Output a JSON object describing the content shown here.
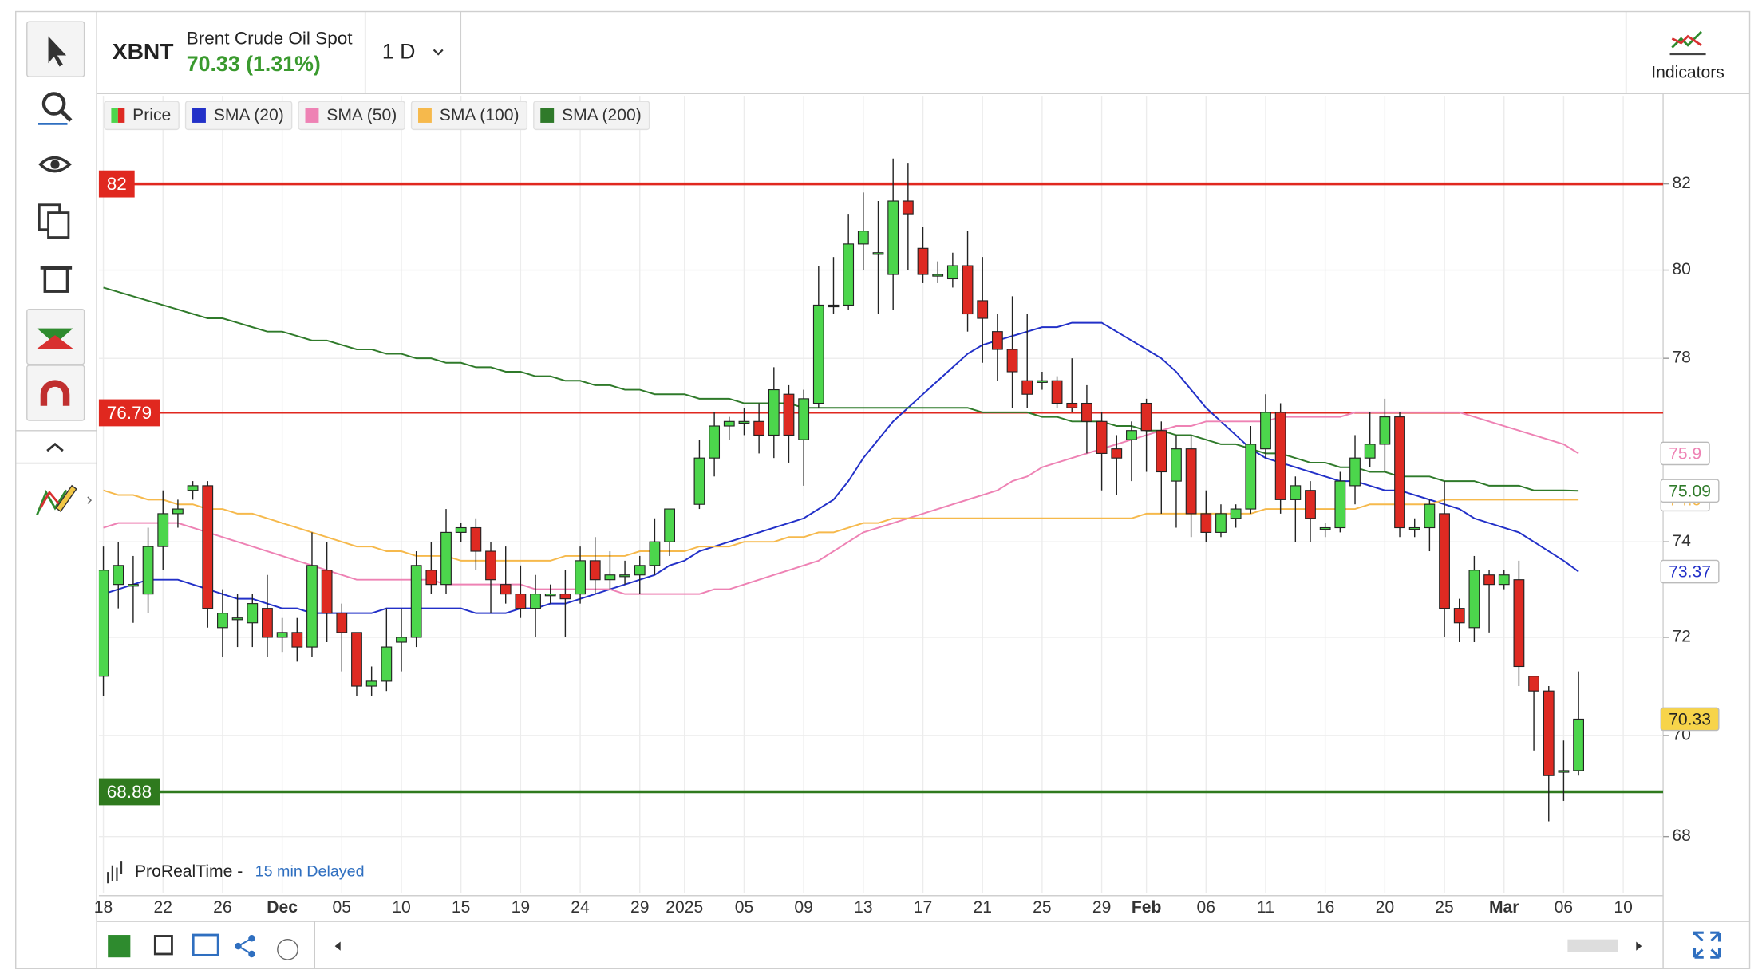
{
  "header": {
    "symbol": "XBNT",
    "name": "Brent Crude Oil Spot",
    "quote": "70.33 (1.31%)",
    "timeframe": "1 D",
    "indicators": "Indicators"
  },
  "footer": {
    "source": "ProRealTime -",
    "delay": "15 min Delayed"
  },
  "chart_data": {
    "type": "candlestick",
    "price_name": "Price",
    "up_color": "#4cd64c",
    "down_color": "#de2a22",
    "log_scale": true,
    "grid": true,
    "legend": "top-left",
    "ylim": [
      66.9,
      84.1
    ],
    "yticks": [
      68,
      70,
      72,
      74,
      78,
      80,
      82
    ],
    "categories": [
      "18",
      null,
      null,
      null,
      "22",
      null,
      null,
      null,
      "26",
      null,
      null,
      null,
      "Dec",
      null,
      null,
      null,
      "05",
      null,
      null,
      null,
      "10",
      null,
      null,
      null,
      "15",
      null,
      null,
      null,
      "19",
      null,
      null,
      null,
      "24",
      null,
      null,
      null,
      "29",
      null,
      null,
      "2025",
      null,
      null,
      null,
      "05",
      null,
      null,
      null,
      "09",
      null,
      null,
      null,
      "13",
      null,
      null,
      null,
      "17",
      null,
      null,
      null,
      "21",
      null,
      null,
      null,
      "25",
      null,
      null,
      null,
      "29",
      null,
      null,
      "Feb",
      null,
      null,
      null,
      "06",
      null,
      null,
      null,
      "11",
      null,
      null,
      null,
      "16",
      null,
      null,
      null,
      "20",
      null,
      null,
      null,
      "25",
      null,
      null,
      null,
      "Mar",
      null,
      null,
      null,
      "06",
      null,
      null,
      null,
      "10"
    ],
    "open": [
      71.2,
      73.1,
      73.1,
      72.9,
      73.9,
      74.6,
      75.1,
      75.2,
      72.2,
      72.4,
      72.3,
      72.6,
      72.0,
      72.1,
      71.8,
      73.4,
      72.5,
      72.1,
      71.0,
      71.1,
      71.9,
      72.0,
      73.4,
      73.1,
      74.2,
      74.3,
      73.8,
      73.1,
      72.9,
      72.6,
      72.9,
      72.9,
      72.9,
      73.6,
      73.2,
      73.3,
      73.3,
      73.5,
      74.0,
      null,
      74.8,
      75.8,
      76.5,
      76.6,
      76.6,
      76.3,
      77.2,
      76.2,
      77.0,
      79.2,
      79.2,
      80.6,
      80.4,
      79.9,
      81.6,
      80.5,
      79.9,
      79.8,
      80.1,
      79.3,
      78.6,
      78.2,
      77.5,
      77.5,
      77.5,
      77.0,
      77.0,
      76.6,
      76.0,
      76.2,
      77.0,
      76.4,
      75.3,
      76.0,
      74.6,
      74.2,
      74.5,
      74.7,
      76.0,
      76.8,
      74.9,
      75.1,
      74.3,
      74.3,
      75.2,
      75.8,
      76.1,
      76.7,
      74.3,
      74.3,
      74.6,
      72.6,
      72.2,
      73.3,
      73.1,
      73.2,
      71.2,
      70.9,
      69.3,
      69.3,
      null,
      null,
      null
    ],
    "high": [
      73.9,
      74.0,
      73.7,
      74.3,
      75.1,
      74.9,
      75.3,
      75.3,
      73.0,
      72.9,
      72.9,
      73.3,
      72.4,
      72.4,
      74.2,
      74.0,
      72.7,
      72.1,
      71.4,
      72.6,
      72.6,
      73.8,
      74.0,
      74.7,
      74.4,
      74.5,
      74.0,
      73.9,
      73.5,
      73.3,
      73.1,
      73.4,
      73.9,
      74.1,
      73.8,
      73.6,
      73.7,
      74.5,
      74.7,
      null,
      76.2,
      76.8,
      76.7,
      76.9,
      77.0,
      77.8,
      77.4,
      77.3,
      80.1,
      80.3,
      81.3,
      81.8,
      81.6,
      82.6,
      82.5,
      81.0,
      80.2,
      80.4,
      80.9,
      80.3,
      79.0,
      79.4,
      79.0,
      77.7,
      77.6,
      78.0,
      77.4,
      76.8,
      76.3,
      76.6,
      77.1,
      76.6,
      76.3,
      76.3,
      75.1,
      74.8,
      74.8,
      76.5,
      77.2,
      77.0,
      75.4,
      75.3,
      74.4,
      75.5,
      76.3,
      76.8,
      77.1,
      76.8,
      74.5,
      74.9,
      75.3,
      72.8,
      73.7,
      73.4,
      73.4,
      73.6,
      71.2,
      71.0,
      69.9,
      71.3,
      null,
      null,
      null
    ],
    "low": [
      70.8,
      72.6,
      72.3,
      72.5,
      73.4,
      74.3,
      74.9,
      72.2,
      71.6,
      71.8,
      71.8,
      71.6,
      71.7,
      71.5,
      71.6,
      71.9,
      71.3,
      70.8,
      70.8,
      70.9,
      71.3,
      71.8,
      72.9,
      72.9,
      74.0,
      73.4,
      72.5,
      72.7,
      72.4,
      72.0,
      72.7,
      72.0,
      72.7,
      72.9,
      73.0,
      73.1,
      72.9,
      73.3,
      73.7,
      null,
      74.7,
      75.4,
      76.2,
      76.3,
      75.9,
      75.8,
      75.7,
      75.2,
      76.9,
      79.0,
      79.1,
      80.0,
      79.0,
      79.1,
      80.0,
      79.7,
      79.7,
      79.6,
      78.6,
      77.9,
      77.5,
      76.9,
      76.9,
      77.3,
      76.9,
      76.8,
      75.9,
      75.1,
      75.0,
      75.3,
      75.5,
      74.6,
      74.3,
      74.1,
      74.0,
      74.1,
      74.3,
      74.6,
      75.8,
      74.6,
      74.0,
      74.0,
      74.1,
      74.2,
      74.8,
      75.6,
      75.5,
      74.1,
      74.1,
      73.8,
      72.0,
      71.9,
      71.9,
      72.1,
      73.0,
      71.0,
      69.7,
      68.3,
      68.7,
      69.2,
      null,
      null,
      null
    ],
    "close": [
      73.4,
      73.5,
      73.1,
      73.9,
      74.6,
      74.7,
      75.2,
      72.6,
      72.5,
      72.4,
      72.7,
      72.0,
      72.1,
      71.8,
      73.5,
      72.5,
      72.1,
      71.0,
      71.1,
      71.8,
      72.0,
      73.5,
      73.1,
      74.2,
      74.3,
      73.8,
      73.2,
      72.9,
      72.6,
      72.9,
      72.9,
      72.8,
      73.6,
      73.2,
      73.3,
      73.3,
      73.5,
      74.0,
      74.7,
      null,
      75.8,
      76.5,
      76.6,
      76.6,
      76.3,
      77.3,
      76.3,
      77.1,
      79.2,
      79.2,
      80.6,
      80.9,
      80.4,
      81.6,
      81.3,
      79.9,
      79.9,
      80.1,
      79.0,
      78.9,
      78.2,
      77.7,
      77.2,
      77.5,
      77.0,
      76.9,
      76.6,
      75.9,
      75.8,
      76.4,
      76.4,
      75.5,
      76.0,
      74.6,
      74.2,
      74.6,
      74.7,
      76.1,
      76.8,
      74.9,
      75.2,
      74.5,
      74.3,
      75.3,
      75.8,
      76.1,
      76.7,
      74.3,
      74.3,
      74.8,
      72.6,
      72.3,
      73.4,
      73.1,
      73.3,
      71.4,
      70.9,
      69.2,
      69.3,
      70.33,
      null,
      null,
      null
    ],
    "price_label_color": "#f7d44a",
    "series": [
      {
        "name": "SMA (20)",
        "color": "#2230c8",
        "values": [
          72.9,
          73.0,
          73.1,
          73.2,
          73.2,
          73.2,
          73.1,
          73.0,
          72.9,
          72.8,
          72.8,
          72.7,
          72.6,
          72.6,
          72.5,
          72.5,
          72.5,
          72.5,
          72.5,
          72.6,
          72.6,
          72.6,
          72.6,
          72.6,
          72.6,
          72.5,
          72.5,
          72.5,
          72.6,
          72.6,
          72.7,
          72.7,
          72.8,
          72.9,
          73.0,
          73.1,
          73.2,
          73.3,
          73.5,
          73.6,
          73.8,
          73.9,
          74.0,
          74.1,
          74.2,
          74.3,
          74.4,
          74.5,
          74.7,
          74.9,
          75.3,
          75.8,
          76.2,
          76.6,
          76.9,
          77.2,
          77.5,
          77.8,
          78.1,
          78.3,
          78.4,
          78.5,
          78.6,
          78.7,
          78.7,
          78.8,
          78.8,
          78.8,
          78.6,
          78.4,
          78.2,
          78.0,
          77.7,
          77.3,
          76.9,
          76.6,
          76.3,
          76.0,
          75.8,
          75.7,
          75.6,
          75.5,
          75.4,
          75.3,
          75.3,
          75.2,
          75.1,
          75.1,
          75.0,
          74.9,
          74.8,
          74.7,
          74.5,
          74.4,
          74.3,
          74.2,
          74.0,
          73.8,
          73.6,
          73.37,
          null,
          null,
          null
        ]
      },
      {
        "name": "SMA (50)",
        "color": "#ee82b4",
        "values": [
          74.3,
          74.4,
          74.4,
          74.4,
          74.4,
          74.4,
          74.3,
          74.2,
          74.1,
          74.0,
          73.9,
          73.8,
          73.7,
          73.6,
          73.5,
          73.4,
          73.3,
          73.2,
          73.2,
          73.2,
          73.2,
          73.2,
          73.2,
          73.1,
          73.1,
          73.1,
          73.1,
          73.1,
          73.1,
          73.0,
          73.0,
          73.0,
          73.0,
          73.0,
          73.0,
          72.9,
          72.9,
          72.9,
          72.9,
          72.9,
          72.9,
          73.0,
          73.0,
          73.1,
          73.2,
          73.3,
          73.4,
          73.5,
          73.6,
          73.8,
          74.0,
          74.2,
          74.3,
          74.4,
          74.5,
          74.6,
          74.7,
          74.8,
          74.9,
          75.0,
          75.1,
          75.3,
          75.4,
          75.6,
          75.7,
          75.8,
          75.9,
          76.0,
          76.1,
          76.2,
          76.3,
          76.4,
          76.5,
          76.5,
          76.6,
          76.6,
          76.6,
          76.6,
          76.6,
          76.7,
          76.7,
          76.7,
          76.7,
          76.7,
          76.8,
          76.8,
          76.8,
          76.8,
          76.8,
          76.8,
          76.8,
          76.8,
          76.7,
          76.6,
          76.5,
          76.4,
          76.3,
          76.2,
          76.1,
          75.9,
          null,
          null,
          null
        ]
      },
      {
        "name": "SMA (100)",
        "color": "#f6b94c",
        "values": [
          75.1,
          75.0,
          75.0,
          74.9,
          74.9,
          74.8,
          74.8,
          74.7,
          74.7,
          74.6,
          74.6,
          74.5,
          74.4,
          74.3,
          74.2,
          74.1,
          74.0,
          73.9,
          73.9,
          73.8,
          73.8,
          73.7,
          73.7,
          73.7,
          73.6,
          73.6,
          73.6,
          73.6,
          73.6,
          73.6,
          73.6,
          73.7,
          73.7,
          73.7,
          73.7,
          73.7,
          73.8,
          73.8,
          73.8,
          73.8,
          73.9,
          73.9,
          73.9,
          74.0,
          74.0,
          74.0,
          74.1,
          74.1,
          74.2,
          74.2,
          74.3,
          74.4,
          74.4,
          74.5,
          74.5,
          74.5,
          74.5,
          74.5,
          74.5,
          74.5,
          74.5,
          74.5,
          74.5,
          74.5,
          74.5,
          74.5,
          74.5,
          74.5,
          74.5,
          74.5,
          74.6,
          74.6,
          74.6,
          74.6,
          74.6,
          74.6,
          74.6,
          74.6,
          74.7,
          74.7,
          74.7,
          74.7,
          74.7,
          74.7,
          74.7,
          74.8,
          74.8,
          74.8,
          74.8,
          74.8,
          74.9,
          74.9,
          74.9,
          74.9,
          74.9,
          74.9,
          74.9,
          74.9,
          74.9,
          74.9,
          null,
          null,
          null
        ]
      },
      {
        "name": "SMA (200)",
        "color": "#2f7a2a",
        "values": [
          79.6,
          79.5,
          79.4,
          79.3,
          79.2,
          79.1,
          79.0,
          78.9,
          78.9,
          78.8,
          78.7,
          78.6,
          78.6,
          78.5,
          78.4,
          78.4,
          78.3,
          78.2,
          78.2,
          78.1,
          78.1,
          78.0,
          78.0,
          77.9,
          77.9,
          77.8,
          77.8,
          77.7,
          77.7,
          77.6,
          77.6,
          77.5,
          77.5,
          77.4,
          77.4,
          77.3,
          77.3,
          77.2,
          77.2,
          77.2,
          77.1,
          77.1,
          77.1,
          77.0,
          77.0,
          77.0,
          77.0,
          76.9,
          76.9,
          76.9,
          76.9,
          76.9,
          76.9,
          76.9,
          76.9,
          76.9,
          76.9,
          76.9,
          76.9,
          76.8,
          76.8,
          76.8,
          76.8,
          76.7,
          76.7,
          76.6,
          76.6,
          76.6,
          76.5,
          76.5,
          76.4,
          76.4,
          76.3,
          76.3,
          76.2,
          76.1,
          76.1,
          76.0,
          75.9,
          75.9,
          75.8,
          75.7,
          75.7,
          75.6,
          75.6,
          75.5,
          75.5,
          75.4,
          75.4,
          75.4,
          75.3,
          75.3,
          75.3,
          75.2,
          75.2,
          75.2,
          75.1,
          75.1,
          75.1,
          75.09,
          null,
          null,
          null
        ]
      }
    ],
    "hlines": [
      {
        "value": 82,
        "color": "#e0281f",
        "width": 2.5
      },
      {
        "value": 76.79,
        "color": "#e0281f",
        "width": 1.5
      },
      {
        "value": 68.88,
        "color": "#2f7a1e",
        "width": 2.5
      }
    ]
  }
}
